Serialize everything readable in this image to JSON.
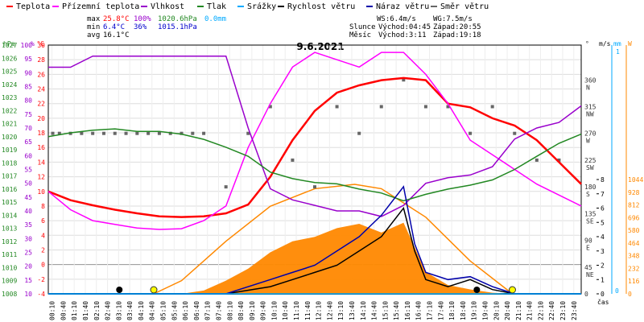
{
  "legend": [
    {
      "label": "Teplota",
      "color": "#ff0000"
    },
    {
      "label": "Přízemní teplota",
      "color": "#ff00ff"
    },
    {
      "label": "Vlhkost",
      "color": "#9900cc"
    },
    {
      "label": "Tlak",
      "color": "#228822"
    },
    {
      "label": "Srážky",
      "color": "#00aaff"
    },
    {
      "label": "Rychlost větru",
      "color": "#000000"
    },
    {
      "label": "Náraz větru",
      "color": "#0000aa"
    },
    {
      "label": "Směr větru",
      "color": "#666666"
    }
  ],
  "stats": {
    "max_label": "max",
    "min_label": "min",
    "avg_label": "avg",
    "max_temp": "25.8°C",
    "max_hum": "100%",
    "max_press": "1020.6hPa",
    "max_rain": "0.0mm",
    "min_temp": "6.4°C",
    "min_hum": "36%",
    "min_press": "1015.1hPa",
    "avg_temp": "16.1°C"
  },
  "wind": {
    "ws": "WS:6.4m/s",
    "wg": "WG:7.5m/s",
    "sun_label": "Slunce",
    "sunrise": "Východ:04:45",
    "sunset": "Západ:20:55",
    "moon_label": "Měsíc",
    "moonrise": "Východ:3:11",
    "moonset": "Západ:19:18"
  },
  "chart_data": {
    "type": "line",
    "title": "9.6.2021",
    "xlabel": "čas",
    "x_ticks": [
      "00:10",
      "00:40",
      "01:10",
      "01:40",
      "02:10",
      "02:40",
      "03:10",
      "03:40",
      "04:10",
      "04:40",
      "05:10",
      "05:40",
      "06:10",
      "06:40",
      "07:10",
      "07:40",
      "08:10",
      "08:40",
      "09:10",
      "09:40",
      "10:10",
      "10:40",
      "11:10",
      "11:40",
      "12:10",
      "12:40",
      "13:10",
      "13:40",
      "14:10",
      "14:40",
      "15:10",
      "15:40",
      "16:10",
      "16:40",
      "17:10",
      "17:40",
      "18:10",
      "18:40",
      "19:10",
      "19:40",
      "20:10",
      "20:40",
      "21:10",
      "21:40",
      "22:10",
      "22:40",
      "23:10",
      "23:40"
    ],
    "axes": {
      "hpa": {
        "label": "hPa",
        "ticks": [
          "1027",
          "1026",
          "1025",
          "1024",
          "1023",
          "1022",
          "1021",
          "1020",
          "1019",
          "1018",
          "1017",
          "1016",
          "1015",
          "1014",
          "1013",
          "1012",
          "1011",
          "1010",
          "1009",
          "1008"
        ],
        "range": [
          1008,
          1027
        ]
      },
      "pct": {
        "label": "%",
        "ticks": [
          "100",
          "95",
          "90",
          "85",
          "80",
          "75",
          "70",
          "65",
          "60",
          "55",
          "50",
          "45",
          "40",
          "35",
          "30",
          "25",
          "20",
          "15",
          "10"
        ],
        "range": [
          10,
          100
        ]
      },
      "temp": {
        "label": "°C",
        "ticks": [
          "30",
          "28",
          "26",
          "24",
          "22",
          "20",
          "18",
          "16",
          "14",
          "12",
          "10",
          "8",
          "6",
          "4",
          "2",
          "0",
          "-2",
          "-4"
        ],
        "range": [
          -4,
          30
        ]
      },
      "dir": {
        "label": "°",
        "ticks": [
          {
            "v": "360",
            "d": "N"
          },
          {
            "v": "315",
            "d": "NW"
          },
          {
            "v": "270",
            "d": "W"
          },
          {
            "v": "225",
            "d": "SW"
          },
          {
            "v": "180",
            "d": "S"
          },
          {
            "v": "135",
            "d": "SE"
          },
          {
            "v": "90",
            "d": "E"
          },
          {
            "v": "45",
            "d": "NE"
          },
          {
            "v": "0",
            "d": ""
          }
        ]
      },
      "ms": {
        "label": "m/s",
        "ticks": [
          "8",
          "7",
          "6",
          "5",
          "4",
          "3",
          "2",
          "1",
          "0"
        ],
        "range": [
          0,
          8
        ]
      },
      "mm": {
        "label": "mm",
        "ticks": [
          "1",
          "0"
        ],
        "range": [
          0,
          1
        ]
      },
      "w": {
        "label": "W",
        "ticks": [
          "1044",
          "928",
          "812",
          "696",
          "580",
          "464",
          "348",
          "232",
          "116",
          "0"
        ],
        "range": [
          0,
          1044
        ]
      }
    },
    "series": [
      {
        "name": "Teplota",
        "color": "#ff0000",
        "axis": "temp",
        "x": [
          0,
          1,
          2,
          3,
          4,
          5,
          6,
          7,
          8,
          9,
          10,
          11,
          12,
          13,
          14,
          15,
          16,
          17,
          18,
          19,
          20,
          21,
          22,
          23,
          24
        ],
        "values": [
          10,
          8.8,
          8.1,
          7.5,
          7,
          6.6,
          6.5,
          6.6,
          7,
          8.2,
          12,
          17,
          21,
          23.5,
          24.5,
          25.2,
          25.5,
          25.2,
          22,
          21.5,
          20,
          19,
          17,
          14,
          11
        ]
      },
      {
        "name": "Přízemní teplota",
        "color": "#ff00ff",
        "axis": "temp",
        "x": [
          0,
          1,
          2,
          3,
          4,
          5,
          6,
          7,
          8,
          9,
          10,
          11,
          12,
          13,
          14,
          15,
          16,
          17,
          18,
          19,
          20,
          21,
          22,
          23,
          24
        ],
        "values": [
          10,
          7.5,
          6,
          5.5,
          5,
          4.8,
          4.9,
          6,
          8,
          16,
          22,
          27,
          29,
          28,
          27,
          29,
          29,
          26,
          22,
          17,
          15,
          13,
          11,
          9.5,
          8
        ]
      },
      {
        "name": "Vlhkost",
        "color": "#9900cc",
        "axis": "pct",
        "x": [
          0,
          1,
          2,
          3,
          4,
          5,
          6,
          7,
          8,
          9,
          10,
          11,
          12,
          13,
          14,
          15,
          16,
          17,
          18,
          19,
          20,
          21,
          22,
          23,
          24
        ],
        "values": [
          92,
          92,
          96,
          96,
          96,
          96,
          96,
          96,
          96,
          70,
          48,
          44,
          42,
          40,
          40,
          38,
          42,
          50,
          52,
          53,
          56,
          66,
          70,
          72,
          78
        ]
      },
      {
        "name": "Tlak",
        "color": "#228822",
        "axis": "hpa",
        "x": [
          0,
          1,
          2,
          3,
          4,
          5,
          6,
          7,
          8,
          9,
          10,
          11,
          12,
          13,
          14,
          15,
          16,
          17,
          18,
          19,
          20,
          21,
          22,
          23,
          24
        ],
        "values": [
          1020,
          1020.3,
          1020.5,
          1020.6,
          1020.4,
          1020.4,
          1020.2,
          1019.8,
          1019.2,
          1018.5,
          1017.3,
          1016.8,
          1016.5,
          1016.4,
          1016,
          1015.7,
          1015.1,
          1015.6,
          1016.0,
          1016.3,
          1016.7,
          1017.5,
          1018.5,
          1019.5,
          1020.2
        ]
      },
      {
        "name": "Rychlost větru",
        "color": "#000000",
        "axis": "ms",
        "x": [
          0,
          2,
          4,
          6,
          8,
          10,
          11,
          12,
          13,
          14,
          15,
          16,
          16.5,
          17,
          18,
          19,
          20,
          21,
          22,
          23,
          24
        ],
        "values": [
          0,
          0,
          0,
          0,
          0,
          0.5,
          1,
          1.5,
          2,
          3,
          4,
          6,
          3,
          1,
          0.5,
          1,
          0.3,
          0,
          0,
          0,
          0
        ]
      },
      {
        "name": "Náraz větru",
        "color": "#0000aa",
        "axis": "ms",
        "x": [
          0,
          2,
          4,
          6,
          8,
          10,
          11,
          12,
          13,
          14,
          15,
          16,
          16.5,
          17,
          18,
          19,
          20,
          21,
          22,
          23,
          24
        ],
        "values": [
          0,
          0,
          0,
          0,
          0,
          1,
          1.5,
          2,
          3,
          4,
          5.5,
          7.5,
          3.5,
          1.5,
          1,
          1.2,
          0.5,
          0,
          0,
          0,
          0
        ]
      },
      {
        "name": "Srážky",
        "color": "#00aaff",
        "axis": "mm",
        "x": [
          0,
          24
        ],
        "values": [
          0,
          0
        ]
      }
    ],
    "solar": {
      "color": "#ff8800",
      "axis": "w",
      "x": [
        0,
        6,
        7,
        8,
        9,
        10,
        11,
        12,
        13,
        14,
        15,
        16,
        17,
        18,
        19,
        20,
        21,
        24
      ],
      "values": [
        0,
        0,
        30,
        120,
        230,
        380,
        480,
        520,
        600,
        640,
        560,
        650,
        200,
        80,
        40,
        10,
        0,
        0
      ]
    },
    "solar_theory": {
      "color": "#ff8800",
      "axis": "w",
      "x": [
        4.75,
        6,
        8,
        10,
        12,
        13.8,
        15,
        17,
        19,
        20.9
      ],
      "values": [
        0,
        120,
        480,
        800,
        960,
        1000,
        960,
        700,
        300,
        0
      ]
    },
    "wind_direction": {
      "color": "#666666",
      "axis": "dir",
      "x": [
        0.2,
        0.5,
        1,
        1.5,
        2,
        2.5,
        3,
        3.5,
        4,
        4.5,
        5,
        5.5,
        6,
        6.5,
        7,
        8,
        9,
        10,
        11,
        12,
        13,
        14,
        15,
        16,
        17,
        18,
        19,
        20,
        21,
        22,
        23
      ],
      "values": [
        270,
        270,
        270,
        270,
        270,
        270,
        270,
        270,
        270,
        270,
        270,
        270,
        270,
        270,
        270,
        180,
        270,
        315,
        225,
        180,
        315,
        270,
        315,
        360,
        315,
        315,
        270,
        315,
        270,
        225,
        225
      ]
    }
  }
}
